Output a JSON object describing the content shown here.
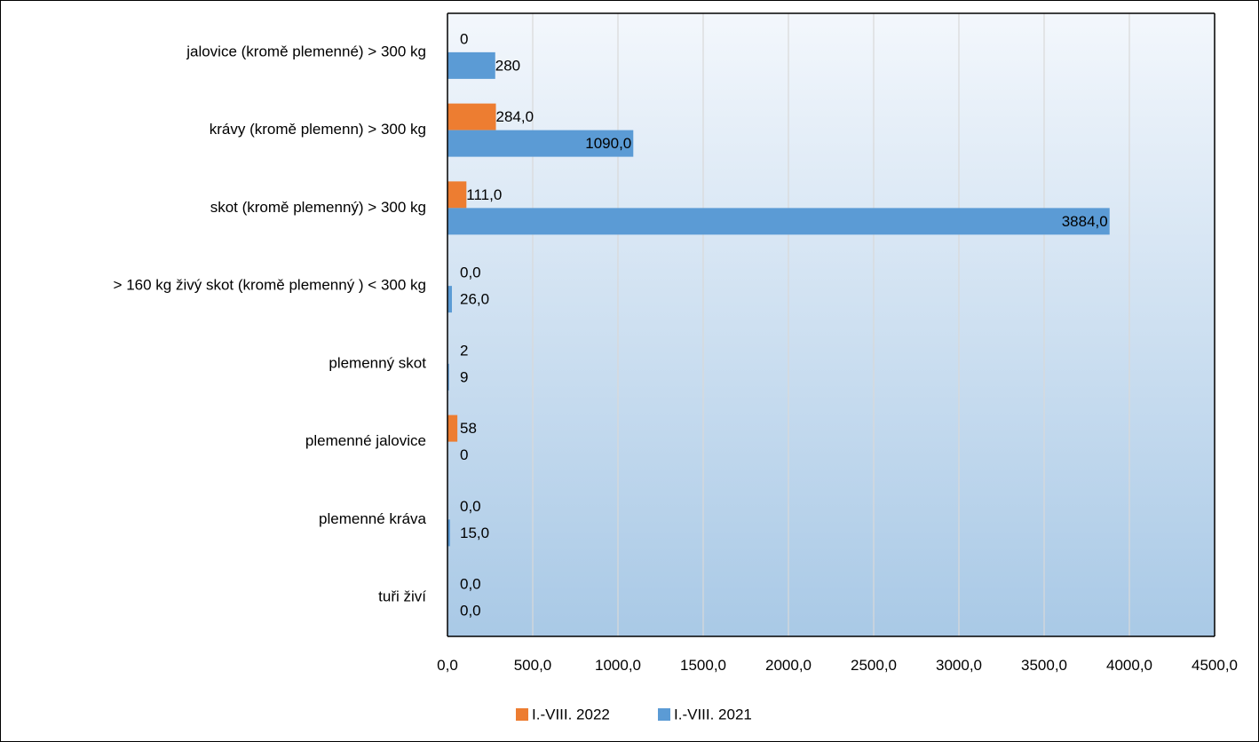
{
  "chart_data": {
    "type": "bar",
    "orientation": "horizontal",
    "categories": [
      "jalovice (kromě plemenné) > 300 kg",
      "krávy (kromě plemenn) > 300 kg",
      "skot (kromě plemenný) > 300 kg",
      "> 160 kg živý skot  (kromě plemenný ) < 300 kg",
      "plemenný skot",
      "plemenné jalovice",
      "plemenné kráva",
      "tuři živí"
    ],
    "series": [
      {
        "name": "I.-VIII. 2022",
        "color": "#ED7D31",
        "values": [
          0,
          284.0,
          111.0,
          0.0,
          2,
          58,
          0.0,
          0.0
        ],
        "labels": [
          "0",
          "284,0",
          "111,0",
          "0,0",
          "2",
          "58",
          "0,0",
          "0,0"
        ]
      },
      {
        "name": "I.-VIII. 2021",
        "color": "#5B9BD5",
        "values": [
          280,
          1090.0,
          3884.0,
          26.0,
          9,
          0,
          15.0,
          0.0
        ],
        "labels": [
          "280",
          "1090,0",
          "3884,0",
          "26,0",
          "9",
          "0",
          "15,0",
          "0,0"
        ]
      }
    ],
    "xlim": [
      0,
      4500
    ],
    "xticks": [
      0,
      500,
      1000,
      1500,
      2000,
      2500,
      3000,
      3500,
      4000,
      4500
    ],
    "xtick_labels": [
      "0,0",
      "500,0",
      "1000,0",
      "1500,0",
      "2000,0",
      "2500,0",
      "3000,0",
      "3500,0",
      "4000,0",
      "4500,0"
    ],
    "grid": true,
    "legend_position": "bottom",
    "title": "",
    "xlabel": "",
    "ylabel": ""
  }
}
